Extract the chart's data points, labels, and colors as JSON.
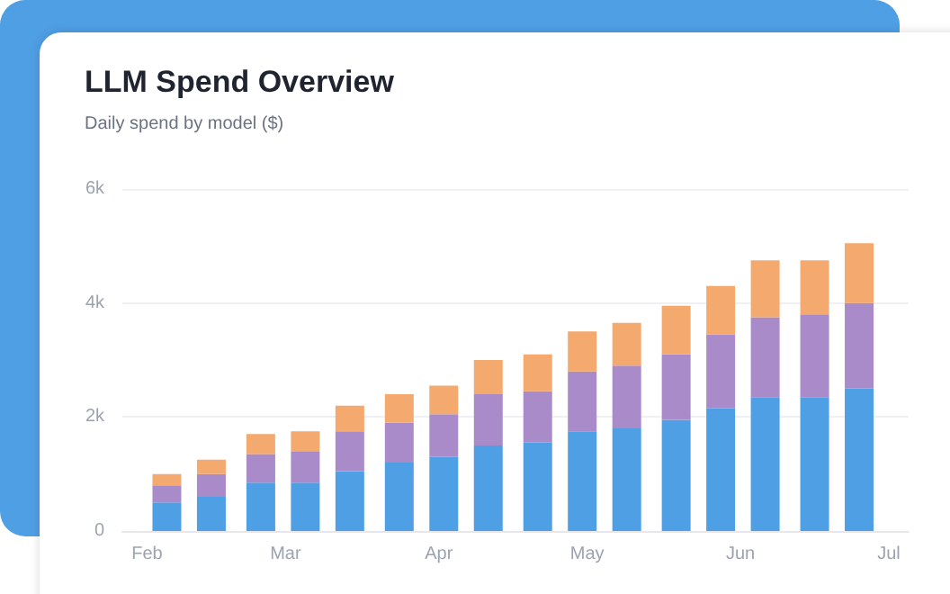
{
  "chart_data": {
    "type": "bar",
    "title": "LLM Spend Overview",
    "subtitle": "Daily spend by model ($)",
    "stacked": true,
    "grid": "y",
    "x": [
      "--02-05",
      "--02-14",
      "--02-24",
      "--03-05",
      "--03-14",
      "--03-24",
      "--04-02",
      "--04-11",
      "--04-21",
      "--04-30",
      "--05-09",
      "--05-19",
      "--05-28",
      "--06-06",
      "--06-16",
      "--06-25"
    ],
    "series": [
      {
        "color": "#4f9fe5",
        "values": [
          500,
          600,
          850,
          850,
          1050,
          1200,
          1300,
          1500,
          1550,
          1750,
          1800,
          1950,
          2150,
          2350,
          2350,
          2500
        ]
      },
      {
        "color": "#a98bc9",
        "values": [
          300,
          400,
          500,
          550,
          700,
          700,
          750,
          900,
          900,
          1050,
          1100,
          1150,
          1300,
          1400,
          1450,
          1500
        ]
      },
      {
        "color": "#f4a96e",
        "values": [
          200,
          250,
          350,
          350,
          450,
          500,
          500,
          600,
          650,
          700,
          750,
          850,
          850,
          1000,
          950,
          1050
        ]
      }
    ],
    "xlim": [
      "--01-27",
      "--07-05"
    ],
    "xticks": [
      {
        "value": "--02-01",
        "label": "Feb"
      },
      {
        "value": "--03-01",
        "label": "Mar"
      },
      {
        "value": "--04-01",
        "label": "Apr"
      },
      {
        "value": "--05-01",
        "label": "May"
      },
      {
        "value": "--06-01",
        "label": "Jun"
      },
      {
        "value": "--07-01",
        "label": "Jul"
      }
    ],
    "ylim": [
      0,
      6000
    ],
    "yticks": [
      0,
      {
        "value": 2000,
        "label": "2k"
      },
      {
        "value": 4000,
        "label": "4k"
      },
      {
        "value": 6000,
        "label": "6k"
      }
    ]
  }
}
